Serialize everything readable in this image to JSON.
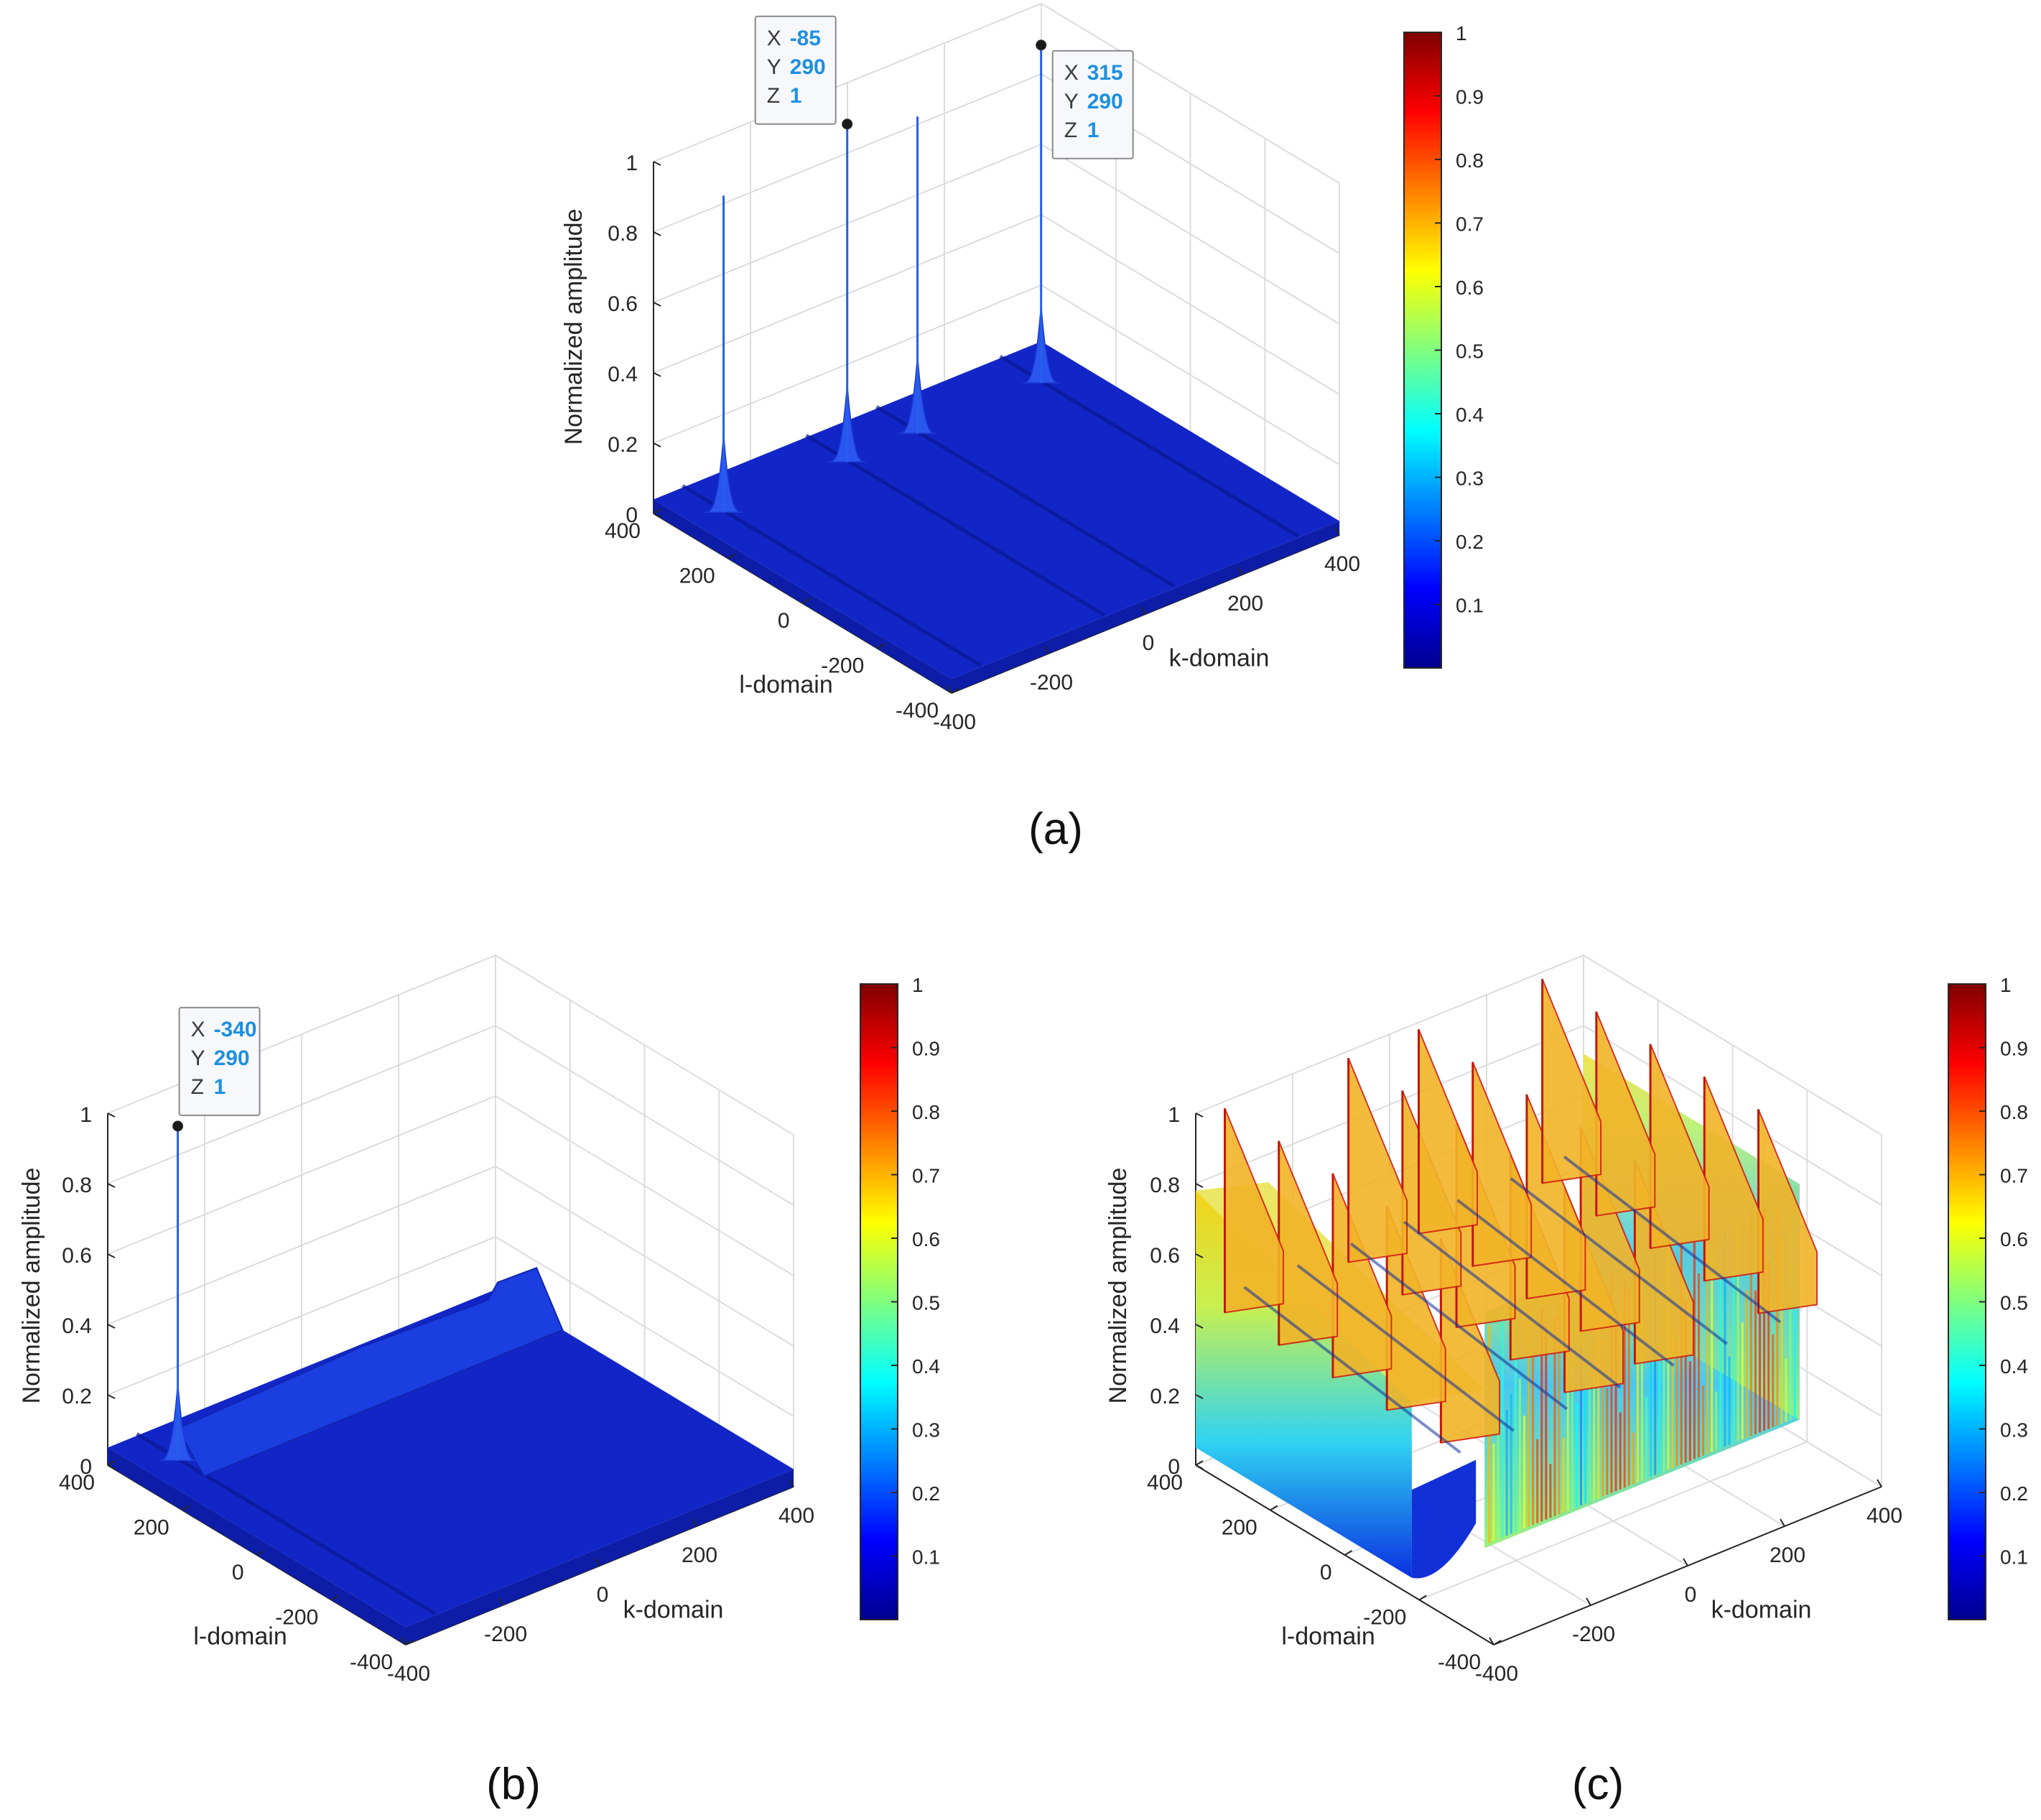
{
  "figure": {
    "panel_labels": [
      "(a)",
      "(b)",
      "(c)"
    ]
  },
  "chart_data": [
    {
      "panel": "(a)",
      "type": "surface3d",
      "zlabel": "Normalized amplitude",
      "xlabel": "k-domain",
      "ylabel": "l-domain",
      "xlim": [
        -400,
        400
      ],
      "ylim": [
        -400,
        400
      ],
      "zlim": [
        0,
        1
      ],
      "x_ticks": [
        -400,
        -200,
        0,
        200,
        400
      ],
      "y_ticks": [
        -400,
        -200,
        0,
        200,
        400
      ],
      "z_ticks": [
        0,
        0.2,
        0.4,
        0.6,
        0.8,
        1
      ],
      "grid": true,
      "colormap": "jet",
      "colorbar_ticks": [
        0.1,
        0.2,
        0.3,
        0.4,
        0.5,
        0.6,
        0.7,
        0.8,
        0.9,
        1
      ],
      "peaks": [
        {
          "x": -340,
          "y": 290,
          "z": 0.94
        },
        {
          "x": -85,
          "y": 290,
          "z": 1
        },
        {
          "x": 60,
          "y": 290,
          "z": 0.94
        },
        {
          "x": 315,
          "y": 290,
          "z": 1
        }
      ],
      "floor_level": 0.04,
      "datatips": [
        {
          "x": "-85",
          "y": "290",
          "z": "1"
        },
        {
          "x": "315",
          "y": "290",
          "z": "1"
        }
      ]
    },
    {
      "panel": "(b)",
      "type": "surface3d",
      "zlabel": "Normalized amplitude",
      "xlabel": "k-domain",
      "ylabel": "l-domain",
      "xlim": [
        -400,
        400
      ],
      "ylim": [
        -400,
        400
      ],
      "zlim": [
        0,
        1
      ],
      "x_ticks": [
        -400,
        -200,
        0,
        200,
        400
      ],
      "y_ticks": [
        -400,
        -200,
        0,
        200,
        400
      ],
      "z_ticks": [
        0,
        0.2,
        0.4,
        0.6,
        0.8,
        1
      ],
      "grid": true,
      "colormap": "jet",
      "colorbar_ticks": [
        0.1,
        0.2,
        0.3,
        0.4,
        0.5,
        0.6,
        0.7,
        0.8,
        0.9,
        1
      ],
      "peaks": [
        {
          "x": -340,
          "y": 290,
          "z": 1
        }
      ],
      "floor_level": 0.05,
      "datatips": [
        {
          "x": "-340",
          "y": "290",
          "z": "1"
        }
      ]
    },
    {
      "panel": "(c)",
      "type": "surface3d",
      "zlabel": "Normalized amplitude",
      "xlabel": "k-domain",
      "ylabel": "l-domain",
      "xlim": [
        -400,
        400
      ],
      "ylim": [
        -400,
        400
      ],
      "zlim": [
        0,
        1
      ],
      "x_ticks": [
        -400,
        -200,
        0,
        200,
        400
      ],
      "y_ticks": [
        -400,
        -200,
        0,
        200,
        400
      ],
      "z_ticks": [
        0,
        0.2,
        0.4,
        0.6,
        0.8,
        1
      ],
      "grid": true,
      "colormap": "jet",
      "colorbar_ticks": [
        0.1,
        0.2,
        0.3,
        0.4,
        0.5,
        0.6,
        0.7,
        0.8,
        0.9,
        1
      ],
      "ridges_k": [
        -340,
        -85,
        60,
        315
      ],
      "amplitude_range": [
        0.05,
        0.98
      ],
      "datatips": []
    }
  ]
}
